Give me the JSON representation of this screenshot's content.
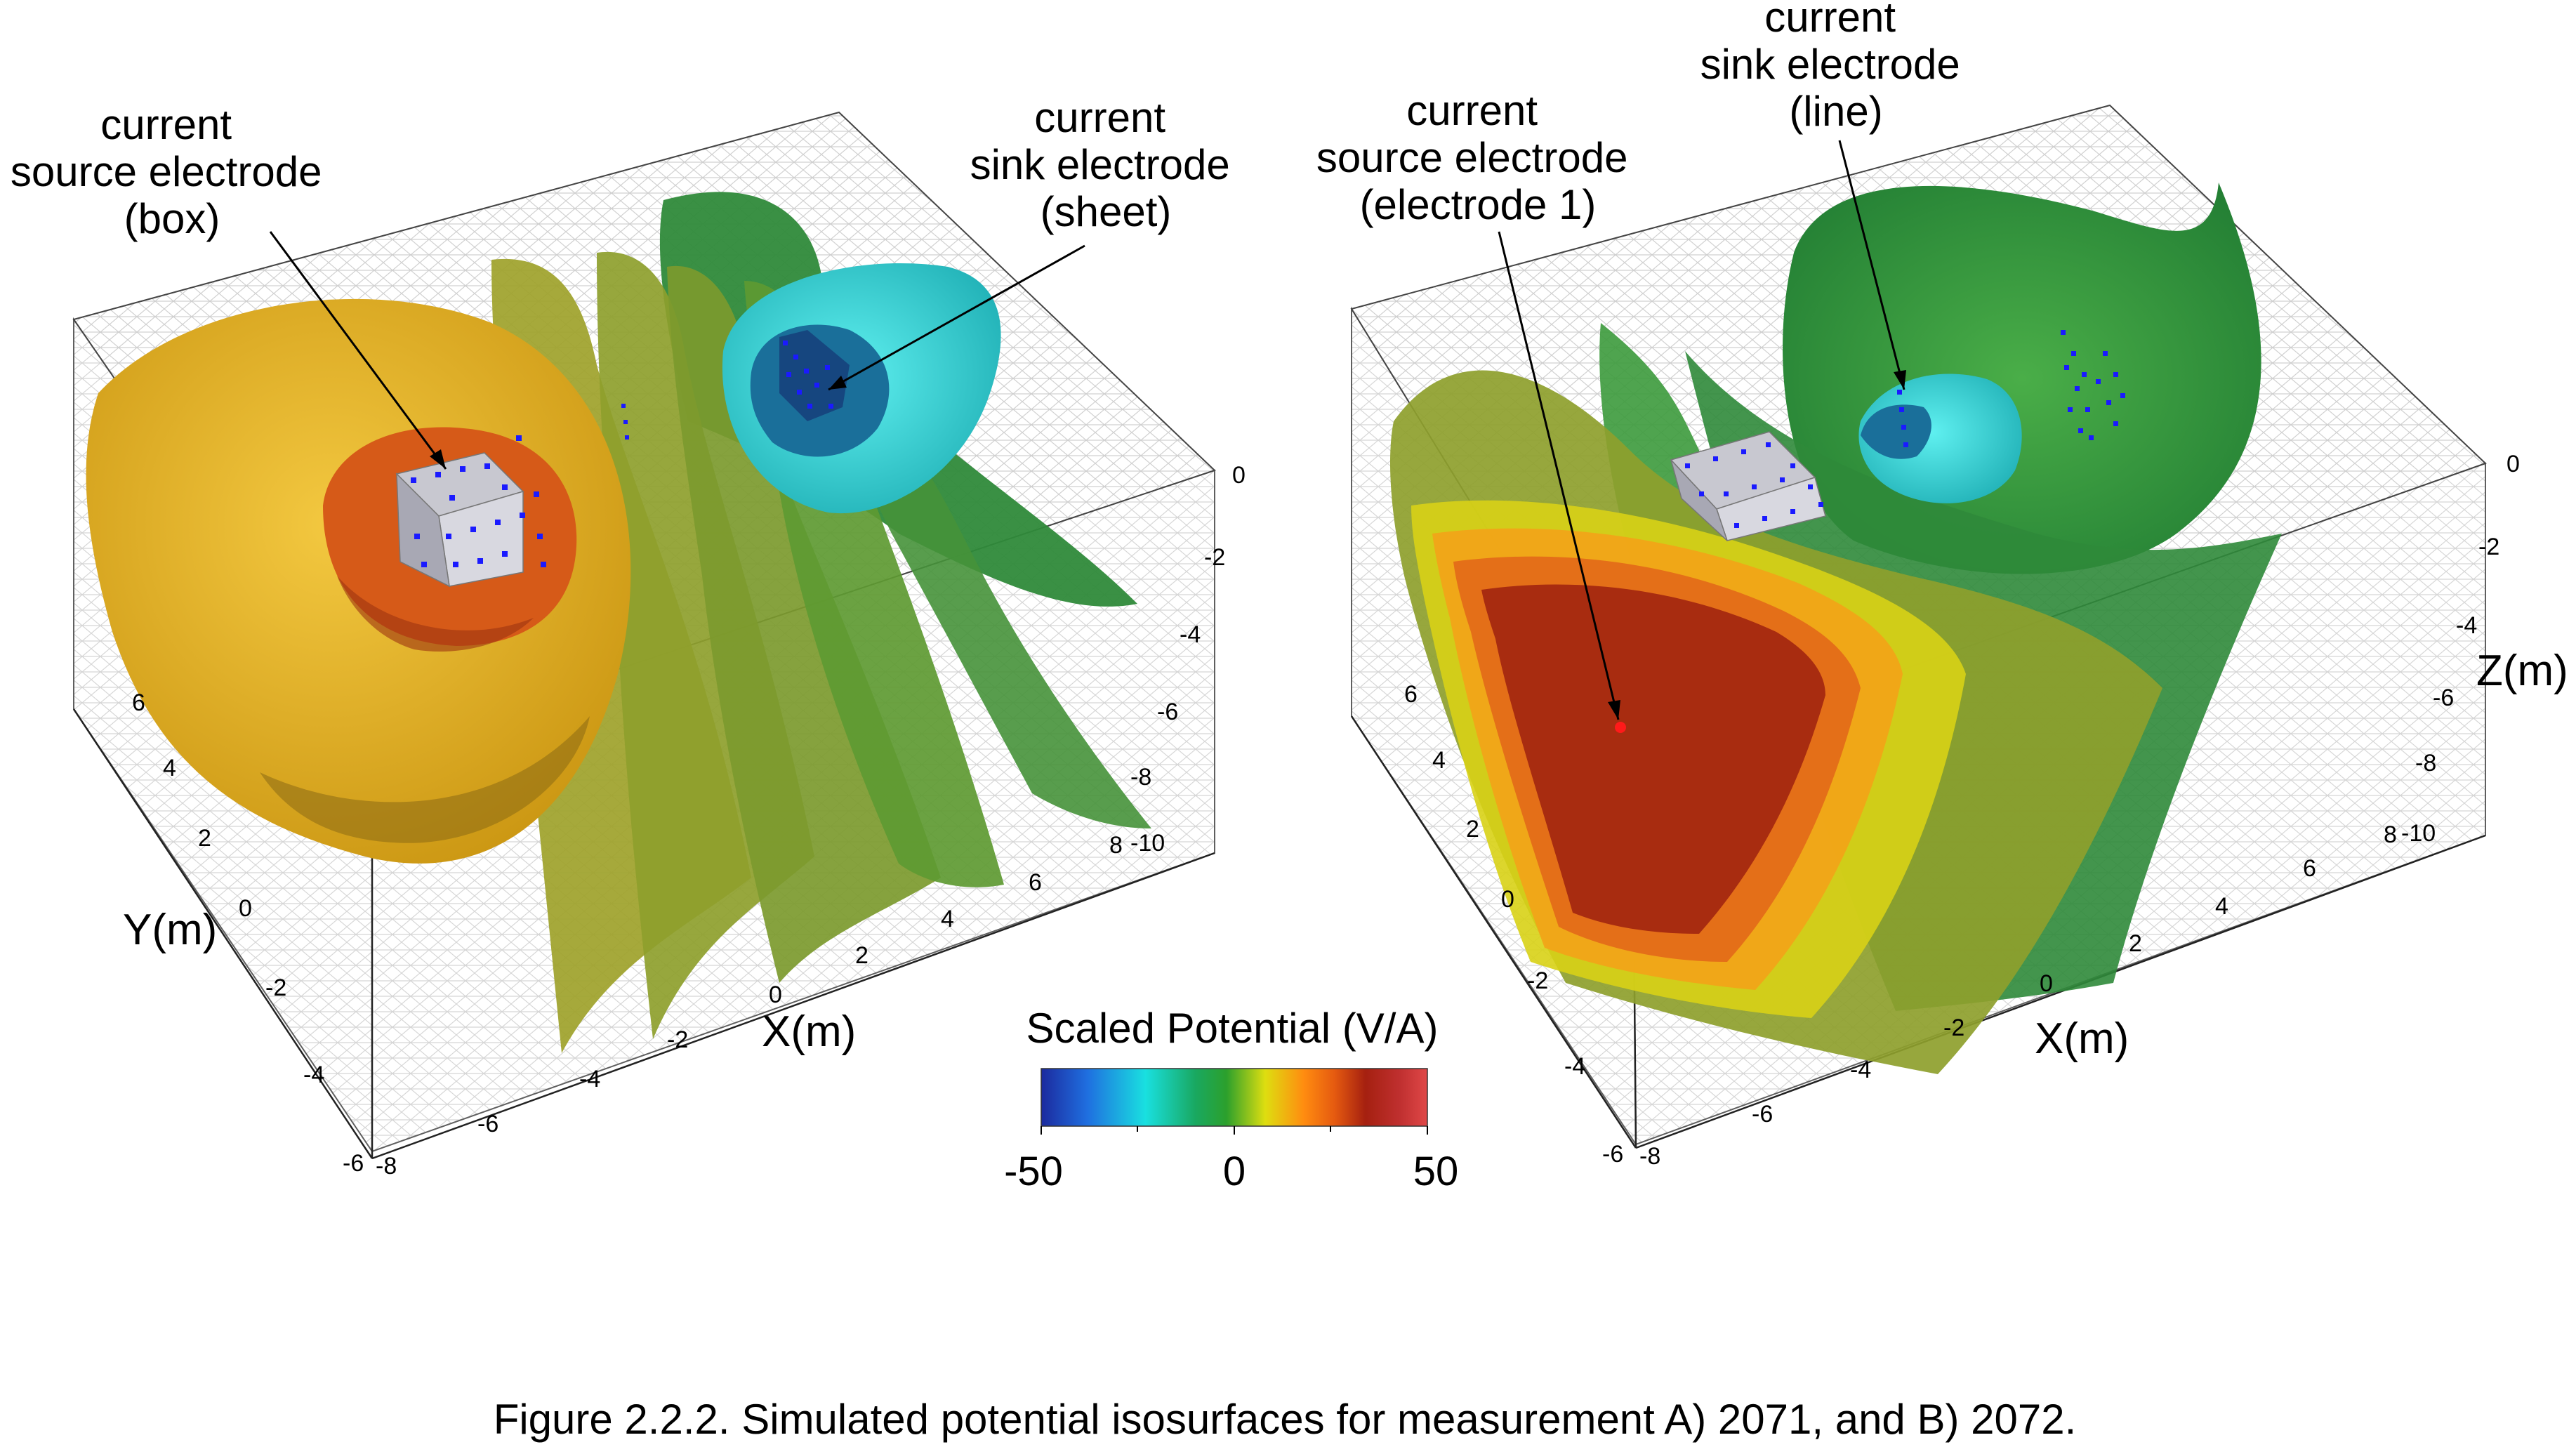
{
  "panel_a": {
    "callouts": {
      "source": [
        "current",
        "source electrode",
        "(box)"
      ],
      "sink": [
        "current",
        "sink electrode",
        "(sheet)"
      ]
    },
    "axes": {
      "y_title": "Y(m)",
      "x_title": "X(m)",
      "y_ticks": [
        "6",
        "4",
        "2",
        "0",
        "-2",
        "-4",
        "-6"
      ],
      "x_ticks": [
        "-8",
        "-6",
        "-4",
        "-2",
        "0",
        "2",
        "4",
        "6",
        "8"
      ],
      "z_ticks": [
        "0",
        "-2",
        "-4",
        "-6",
        "-8",
        "-10"
      ]
    }
  },
  "panel_b": {
    "callouts": {
      "source": [
        "current",
        "source electrode",
        "(electrode 1)"
      ],
      "sink": [
        "current",
        "sink electrode",
        "(line)"
      ]
    },
    "axes": {
      "y_ticks": [
        "6",
        "4",
        "2",
        "0",
        "-2",
        "-4",
        "-6"
      ],
      "x_title": "X(m)",
      "x_ticks": [
        "-8",
        "-6",
        "-4",
        "-2",
        "0",
        "2",
        "4",
        "6",
        "8"
      ],
      "z_title": "Z(m)",
      "z_ticks": [
        "0",
        "-2",
        "-4",
        "-6",
        "-8",
        "-10"
      ]
    }
  },
  "colorbar": {
    "title": "Scaled Potential (V/A)",
    "tick_labels": [
      "-50",
      "0",
      "50"
    ],
    "min": -50,
    "max": 50,
    "colors": [
      "#1c2a9e",
      "#1f7fe0",
      "#19e0e0",
      "#19a860",
      "#2ca02c",
      "#dede10",
      "#ff8c10",
      "#e55a10",
      "#a52010",
      "#c03030",
      "#e04848"
    ]
  },
  "caption": "Figure 2.2.2. Simulated potential isosurfaces for measurement A) 2071, and B) 2072.",
  "colors": {
    "gold": "#e0b020",
    "olive": "#a6a828",
    "green": "#3f9a3a",
    "cyan": "#27c8c8",
    "orange": "#e06018",
    "dark_red": "#a82810",
    "electrode": "#1a1aff",
    "mesh": "#c8c8c8"
  }
}
